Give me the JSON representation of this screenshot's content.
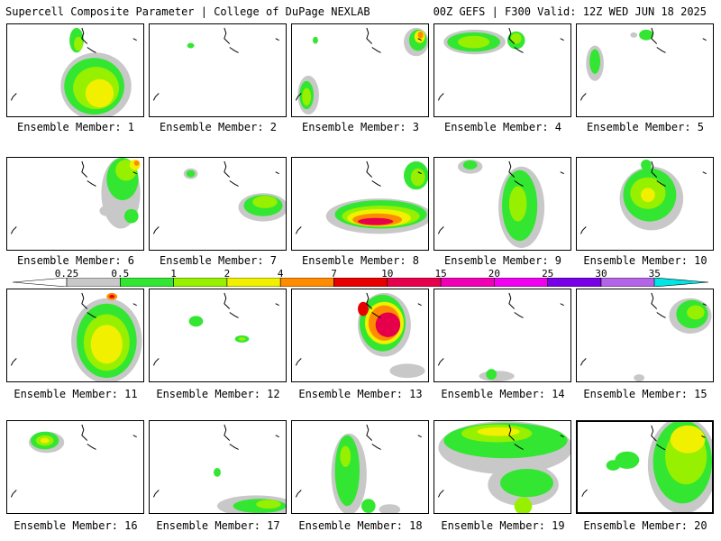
{
  "header": {
    "title_left": "Supercell Composite Parameter | College of DuPage NEXLAB",
    "title_right": "00Z GEFS | F300 Valid: 12Z WED JUN 18 2025"
  },
  "legend": {
    "ticks": [
      "0.25",
      "0.5",
      "1",
      "2",
      "4",
      "7",
      "10",
      "15",
      "20",
      "25",
      "30",
      "35"
    ],
    "colors": [
      "#c8c8c8",
      "#32e632",
      "#96f000",
      "#f0f000",
      "#ff8c00",
      "#e60000",
      "#e6004b",
      "#f000b4",
      "#f000f0",
      "#7800e6",
      "#b464e6",
      "#00e6e6"
    ]
  },
  "members": [
    {
      "label": "Ensemble Member: 1"
    },
    {
      "label": "Ensemble Member: 2"
    },
    {
      "label": "Ensemble Member: 3"
    },
    {
      "label": "Ensemble Member: 4"
    },
    {
      "label": "Ensemble Member: 5"
    },
    {
      "label": "Ensemble Member: 6"
    },
    {
      "label": "Ensemble Member: 7"
    },
    {
      "label": "Ensemble Member: 8"
    },
    {
      "label": "Ensemble Member: 9"
    },
    {
      "label": "Ensemble Member: 10"
    },
    {
      "label": "Ensemble Member: 11"
    },
    {
      "label": "Ensemble Member: 12"
    },
    {
      "label": "Ensemble Member: 13"
    },
    {
      "label": "Ensemble Member: 14"
    },
    {
      "label": "Ensemble Member: 15"
    },
    {
      "label": "Ensemble Member: 16"
    },
    {
      "label": "Ensemble Member: 17"
    },
    {
      "label": "Ensemble Member: 18"
    },
    {
      "label": "Ensemble Member: 19"
    },
    {
      "label": "Ensemble Member: 20"
    }
  ]
}
